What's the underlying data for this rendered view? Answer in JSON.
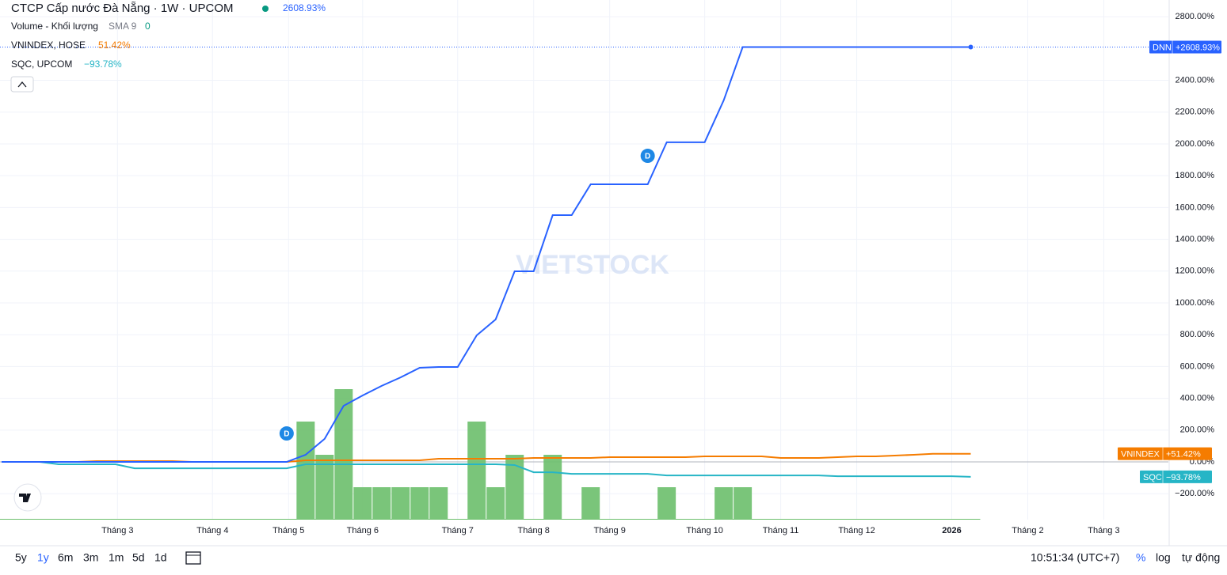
{
  "chart_data": [
    {
      "type": "line",
      "title": "CTCP Cấp nước Đà Nẵng · 1W · UPCOM",
      "watermark": "VIETSTOCK",
      "x": [
        0,
        1,
        2,
        3,
        4,
        5,
        6,
        7,
        8,
        9,
        10,
        11,
        12,
        13,
        14,
        15,
        16,
        17,
        18,
        19,
        20,
        21,
        22,
        23,
        24,
        25,
        26,
        27,
        28,
        29,
        30,
        31,
        32,
        33,
        34,
        35,
        36,
        37,
        38,
        39,
        40,
        41,
        42,
        43,
        44,
        45,
        46,
        47,
        48,
        49,
        50,
        51
      ],
      "xlim": [
        0,
        61.4
      ],
      "xticks": [
        {
          "value": 6.1,
          "label": "Tháng 3"
        },
        {
          "value": 11.1,
          "label": "Tháng 4"
        },
        {
          "value": 15.1,
          "label": "Tháng 5"
        },
        {
          "value": 19,
          "label": "Tháng 6"
        },
        {
          "value": 24,
          "label": "Tháng 7"
        },
        {
          "value": 28,
          "label": "Tháng 8"
        },
        {
          "value": 32,
          "label": "Tháng 9"
        },
        {
          "value": 37,
          "label": "Tháng 10"
        },
        {
          "value": 41,
          "label": "Tháng 11"
        },
        {
          "value": 45,
          "label": "Tháng 12"
        },
        {
          "value": 50,
          "label": "2026"
        },
        {
          "value": 54,
          "label": "Tháng 2"
        },
        {
          "value": 58,
          "label": "Tháng 3"
        }
      ],
      "ylim": [
        -363,
        2905
      ],
      "yticks": [
        {
          "value": -200,
          "label": "−200.00%"
        },
        {
          "value": 0,
          "label": "0.00%"
        },
        {
          "value": 200,
          "label": "200.00%"
        },
        {
          "value": 400,
          "label": "400.00%"
        },
        {
          "value": 600,
          "label": "600.00%"
        },
        {
          "value": 800,
          "label": "800.00%"
        },
        {
          "value": 1000,
          "label": "1000.00%"
        },
        {
          "value": 1200,
          "label": "1200.00%"
        },
        {
          "value": 1400,
          "label": "1400.00%"
        },
        {
          "value": 1600,
          "label": "1600.00%"
        },
        {
          "value": 1800,
          "label": "1800.00%"
        },
        {
          "value": 2000,
          "label": "2000.00%"
        },
        {
          "value": 2200,
          "label": "2200.00%"
        },
        {
          "value": 2400,
          "label": "2400.00%"
        },
        {
          "value": 2800,
          "label": "2800.00%"
        }
      ],
      "grid": true,
      "events": [
        {
          "x": 15,
          "label": "D"
        },
        {
          "x": 34,
          "label": "D"
        }
      ],
      "series": [
        {
          "name": "DNN",
          "legend": "CTCP Cấp nước Đà Nẵng · 1W · UPCOM",
          "header_label": "2608.93%",
          "tag_label": "+2608.93%",
          "color": "#2962ff",
          "values": [
            0,
            0,
            0,
            0,
            0,
            0,
            0,
            0,
            0,
            0,
            0,
            0,
            0,
            0,
            0,
            0,
            45,
            145,
            353,
            418,
            478,
            532,
            592,
            597,
            597,
            796,
            896,
            1199,
            1199,
            1552,
            1552,
            1746,
            1746,
            1746,
            1746,
            2010,
            2010,
            2010,
            2274,
            2608.93,
            2608.93,
            2608.93,
            2608.93,
            2608.93,
            2608.93,
            2608.93,
            2608.93,
            2608.93,
            2608.93,
            2608.93,
            2608.93,
            2608.93
          ]
        },
        {
          "name": "VNINDEX",
          "legend": "VNINDEX, HOSE",
          "header_label": "51.42%",
          "tag_label": "+51.42%",
          "color": "#f57c00",
          "values": [
            0,
            0,
            0,
            0,
            0,
            5,
            5,
            5,
            5,
            5,
            0,
            0,
            0,
            0,
            0,
            0,
            10,
            10,
            10,
            10,
            10,
            10,
            10,
            20,
            20,
            20,
            20,
            20,
            25,
            25,
            25,
            25,
            30,
            30,
            30,
            30,
            30,
            35,
            35,
            35,
            35,
            25,
            25,
            25,
            30,
            35,
            35,
            40,
            45,
            51.42,
            51.42,
            51.42
          ]
        },
        {
          "name": "SQC",
          "legend": "SQC, UPCOM",
          "header_label": "−93.78%",
          "tag_label": "−93.78%",
          "color": "#26b5c6",
          "values": [
            0,
            0,
            0,
            -15,
            -15,
            -15,
            -15,
            -40,
            -40,
            -40,
            -40,
            -40,
            -40,
            -40,
            -40,
            -40,
            -15,
            -15,
            -15,
            -15,
            -15,
            -15,
            -15,
            -15,
            -15,
            -15,
            -15,
            -20,
            -65,
            -65,
            -75,
            -75,
            -75,
            -75,
            -75,
            -85,
            -85,
            -85,
            -85,
            -85,
            -85,
            -85,
            -85,
            -85,
            -90,
            -90,
            -90,
            -90,
            -90,
            -90,
            -90,
            -93.78
          ]
        }
      ]
    },
    {
      "type": "bar",
      "title": "Volume - Khối lượng",
      "sma": "SMA 9",
      "sma_value": 0,
      "color": "#6cbf6c",
      "ylim": [
        0,
        200
      ],
      "values": [
        0,
        0,
        0,
        0,
        0,
        0,
        0,
        0,
        0,
        0,
        0,
        0,
        0,
        0,
        0,
        0,
        124,
        82,
        165,
        41,
        41,
        41,
        41,
        41,
        0,
        124,
        41,
        82,
        0,
        82,
        0,
        41,
        0,
        0,
        0,
        41,
        0,
        0,
        41,
        41,
        0,
        0,
        0,
        0,
        0,
        0,
        0,
        0,
        0,
        0,
        0,
        0
      ]
    }
  ],
  "toolbar": {
    "ranges": [
      "5y",
      "1y",
      "6m",
      "3m",
      "1m",
      "5d",
      "1d"
    ],
    "clock": "10:51:34 (UTC+7)",
    "percent": "%",
    "log": "log",
    "auto": "tự động"
  }
}
